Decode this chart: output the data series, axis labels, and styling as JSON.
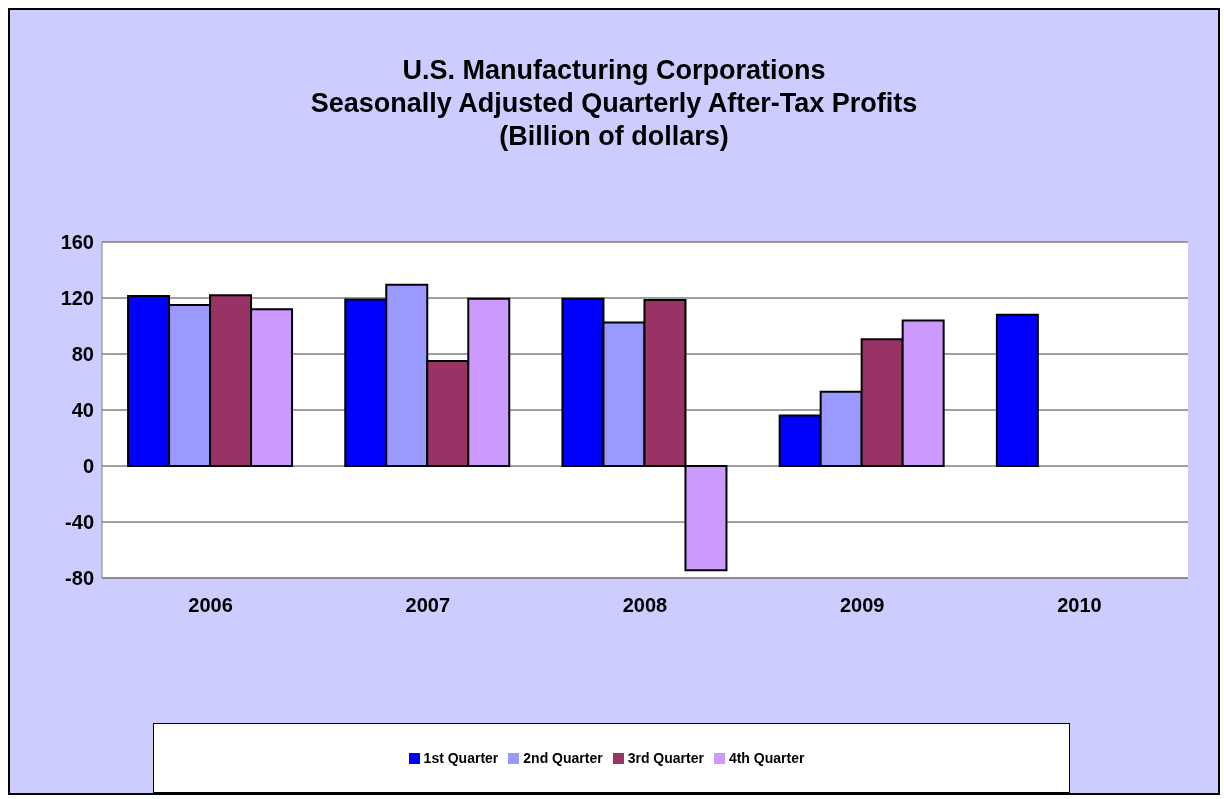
{
  "chart_data": {
    "type": "bar",
    "title": "U.S. Manufacturing Corporations\nSeasonally Adjusted Quarterly After-Tax Profits\n(Billion of dollars)",
    "categories": [
      "2006",
      "2007",
      "2008",
      "2009",
      "2010"
    ],
    "series": [
      {
        "name": "1st Quarter",
        "color": "#0000ff",
        "values": [
          121.5,
          119,
          119.5,
          36,
          108
        ]
      },
      {
        "name": "2nd Quarter",
        "color": "#9999ff",
        "values": [
          115,
          129.5,
          102.5,
          53,
          null
        ]
      },
      {
        "name": "3rd Quarter",
        "color": "#993366",
        "values": [
          122,
          75,
          118.5,
          90.5,
          null
        ]
      },
      {
        "name": "4th Quarter",
        "color": "#cc99ff",
        "values": [
          112,
          119.5,
          -74.5,
          104,
          null
        ]
      }
    ],
    "ylim": [
      -80,
      160
    ],
    "yticks": [
      -80,
      -40,
      0,
      40,
      80,
      120,
      160
    ],
    "grid": "y",
    "legend": "bottom"
  }
}
